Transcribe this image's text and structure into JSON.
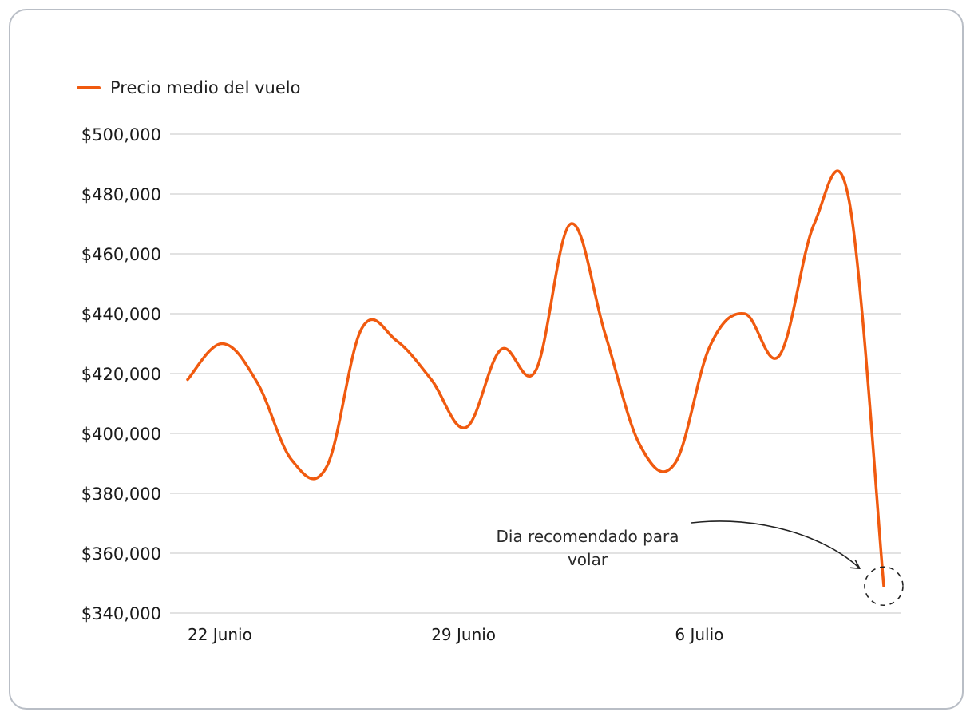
{
  "chart_data": {
    "type": "line",
    "legend": {
      "label": "Precio medio del vuelo",
      "position": "top-left"
    },
    "series": [
      {
        "name": "Precio medio del vuelo",
        "color": "#f05a0f",
        "points": [
          {
            "x": "2023-06-22",
            "y": 418000
          },
          {
            "x": "2023-06-23",
            "y": 430000
          },
          {
            "x": "2023-06-24",
            "y": 417000
          },
          {
            "x": "2023-06-25",
            "y": 391000
          },
          {
            "x": "2023-06-26",
            "y": 389000
          },
          {
            "x": "2023-06-27",
            "y": 435000
          },
          {
            "x": "2023-06-28",
            "y": 431000
          },
          {
            "x": "2023-06-29",
            "y": 418000
          },
          {
            "x": "2023-06-30",
            "y": 402000
          },
          {
            "x": "2023-07-01",
            "y": 428000
          },
          {
            "x": "2023-07-02",
            "y": 421000
          },
          {
            "x": "2023-07-03",
            "y": 470000
          },
          {
            "x": "2023-07-04",
            "y": 433000
          },
          {
            "x": "2023-07-05",
            "y": 396000
          },
          {
            "x": "2023-07-06",
            "y": 390000
          },
          {
            "x": "2023-07-07",
            "y": 429000
          },
          {
            "x": "2023-07-08",
            "y": 440000
          },
          {
            "x": "2023-07-09",
            "y": 426000
          },
          {
            "x": "2023-07-10",
            "y": 470000
          },
          {
            "x": "2023-07-11",
            "y": 478000
          },
          {
            "x": "2023-07-12",
            "y": 349000
          }
        ]
      }
    ],
    "x_ticks": [
      {
        "x": "2023-06-22",
        "label": "22 Junio"
      },
      {
        "x": "2023-06-29",
        "label": "29 Junio"
      },
      {
        "x": "2023-07-06",
        "label": "6 Julio"
      }
    ],
    "y_ticks": [
      "$340,000",
      "$360,000",
      "$380,000",
      "$400,000",
      "$420,000",
      "$440,000",
      "$460,000",
      "$480,000",
      "$500,000"
    ],
    "ylim": [
      340000,
      500000
    ],
    "grid": "horizontal",
    "annotation": {
      "text_line1": "Dia recomendado para",
      "text_line2": "volar",
      "x": "2023-07-12",
      "y": 349000
    }
  },
  "colors": {
    "line": "#f05a0f",
    "grid": "#d9d9d9",
    "border": "#b9bec6"
  }
}
